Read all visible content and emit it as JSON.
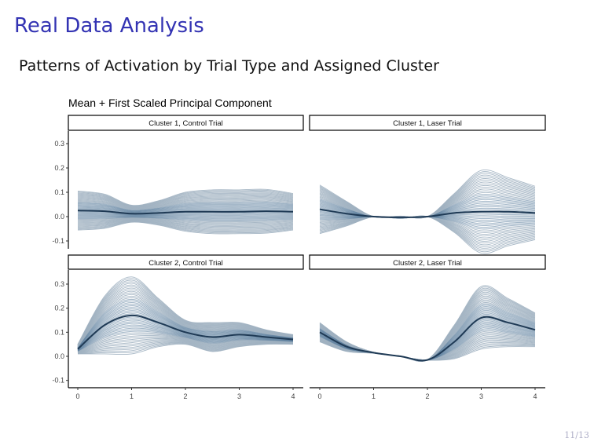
{
  "slide": {
    "title": "Real Data Analysis",
    "subtitle": "Patterns of Activation by Trial Type and Assigned Cluster",
    "page": "11/13",
    "title_color": "#3333b3"
  },
  "chart_data": {
    "type": "line",
    "title": "Mean + First Scaled Principal Component",
    "xlim": [
      0,
      4
    ],
    "ylim": [
      -0.13,
      0.36
    ],
    "x_ticks": [
      "0",
      "1",
      "2",
      "3",
      "4"
    ],
    "y_ticks": [
      "0.3",
      "0.2",
      "0.1",
      "0.0",
      "-0.1"
    ],
    "grid": false,
    "colors": {
      "mean": "#1f3a55",
      "component": "#5b7d9c",
      "outer": "#9fb0c0"
    },
    "x": [
      0,
      0.5,
      1,
      1.5,
      2,
      2.5,
      3,
      3.5,
      4
    ],
    "panels": [
      {
        "label": "Cluster 1, Control Trial",
        "mean": [
          0.025,
          0.022,
          0.012,
          0.015,
          0.02,
          0.02,
          0.02,
          0.022,
          0.02
        ],
        "pc1": [
          0.08,
          0.07,
          0.035,
          0.05,
          0.08,
          0.09,
          0.09,
          0.09,
          0.075
        ]
      },
      {
        "label": "Cluster 1, Laser Trial",
        "mean": [
          0.03,
          0.012,
          0.0,
          -0.003,
          0.0,
          0.015,
          0.02,
          0.02,
          0.015
        ],
        "pc1": [
          0.1,
          0.05,
          0.0,
          0.005,
          0.0,
          0.08,
          0.17,
          0.14,
          0.11
        ]
      },
      {
        "label": "Cluster 2, Control Trial",
        "mean": [
          0.03,
          0.13,
          0.17,
          0.14,
          0.1,
          0.08,
          0.09,
          0.08,
          0.07
        ],
        "pc1": [
          0.02,
          0.12,
          0.16,
          0.1,
          0.05,
          0.06,
          0.05,
          0.03,
          0.02
        ]
      },
      {
        "label": "Cluster 2, Laser Trial",
        "mean": [
          0.1,
          0.04,
          0.015,
          0.0,
          -0.015,
          0.06,
          0.16,
          0.14,
          0.11
        ],
        "pc1": [
          0.04,
          0.02,
          0.002,
          0.001,
          0.001,
          0.07,
          0.13,
          0.1,
          0.07
        ]
      }
    ]
  }
}
